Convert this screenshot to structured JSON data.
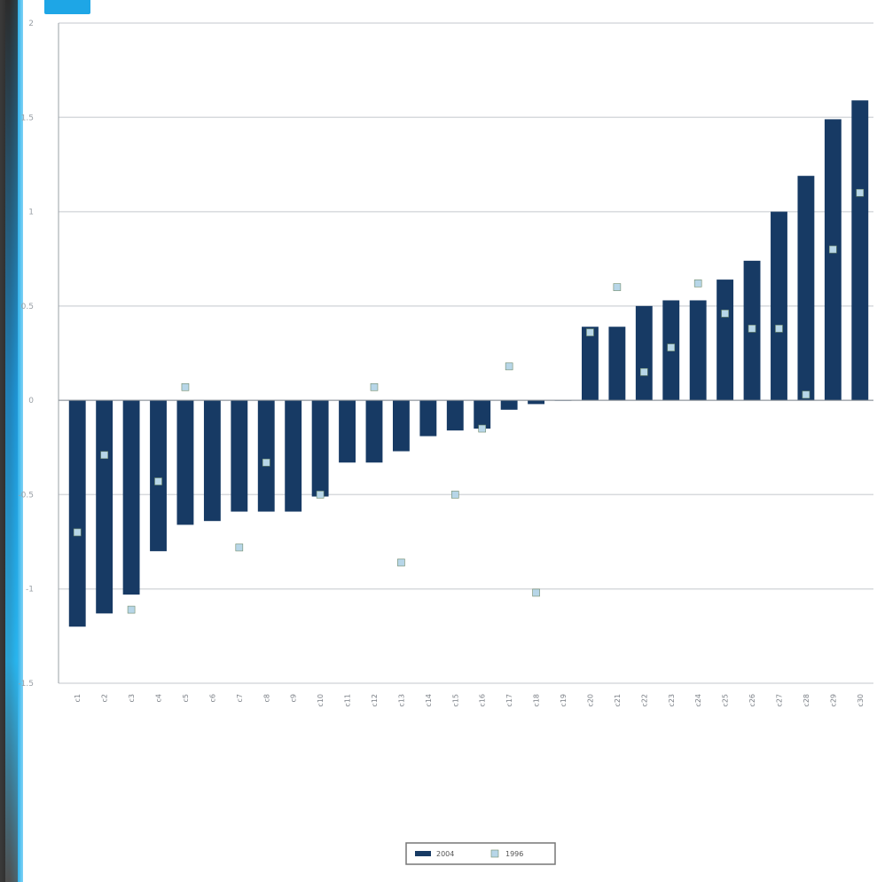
{
  "chart_data": {
    "type": "bar",
    "title": "",
    "xlabel": "",
    "ylabel": "",
    "ylim": [
      -1.5,
      2.0
    ],
    "grid": true,
    "legend_position": "bottom-center",
    "y_ticks": [
      -1.5,
      -1.0,
      -0.5,
      0,
      0.5,
      1.0,
      1.5,
      2.0
    ],
    "y_tick_labels": [
      "-1.5",
      "-1",
      "-0.5",
      "0",
      "0.5",
      "1",
      "1.5",
      "2"
    ],
    "categories": [
      "c1",
      "c2",
      "c3",
      "c4",
      "c5",
      "c6",
      "c7",
      "c8",
      "c9",
      "c10",
      "c11",
      "c12",
      "c13",
      "c14",
      "c15",
      "c16",
      "c17",
      "c18",
      "c19",
      "c20",
      "c21",
      "c22",
      "c23",
      "c24",
      "c25",
      "c26",
      "c27",
      "c28",
      "c29",
      "c30"
    ],
    "series": [
      {
        "name": "2004",
        "kind": "bar",
        "color": "#173a64",
        "values": [
          -1.2,
          -1.13,
          -1.03,
          -0.8,
          -0.66,
          -0.64,
          -0.59,
          -0.59,
          -0.59,
          -0.51,
          -0.33,
          -0.33,
          -0.27,
          -0.19,
          -0.16,
          -0.15,
          -0.05,
          -0.02,
          0,
          0.39,
          0.39,
          0.5,
          0.53,
          0.53,
          0.64,
          0.74,
          1.0,
          1.19,
          1.49,
          1.59
        ]
      },
      {
        "name": "1996",
        "kind": "marker",
        "color": "#b7d6e8",
        "values": [
          -0.7,
          -0.29,
          -1.11,
          -0.43,
          0.07,
          null,
          -0.78,
          -0.33,
          null,
          -0.5,
          null,
          0.07,
          -0.86,
          null,
          -0.5,
          -0.15,
          0.18,
          -1.02,
          null,
          0.36,
          0.6,
          0.15,
          0.28,
          0.62,
          0.46,
          0.38,
          0.38,
          0.03,
          0.8,
          1.1
        ]
      }
    ]
  }
}
